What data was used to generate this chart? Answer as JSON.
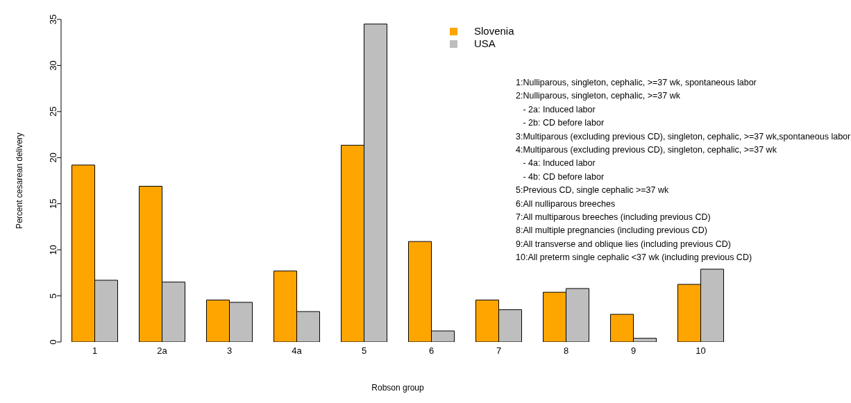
{
  "chart_data": {
    "type": "bar",
    "xlabel": "Robson group",
    "ylabel": "Percent cesarean delivery",
    "categories": [
      "1",
      "2a",
      "3",
      "4a",
      "5",
      "6",
      "7",
      "8",
      "9",
      "10"
    ],
    "series": [
      {
        "name": "Slovenia",
        "color": "#ffa500",
        "values": [
          19.2,
          16.9,
          4.55,
          7.7,
          21.35,
          10.9,
          4.55,
          5.4,
          3.0,
          6.25
        ]
      },
      {
        "name": "USA",
        "color": "#bebebe",
        "values": [
          6.7,
          6.5,
          4.3,
          3.3,
          34.5,
          1.2,
          3.5,
          5.8,
          0.4,
          7.9
        ]
      }
    ],
    "ylim": [
      0,
      35
    ],
    "yticks": [
      0,
      5,
      10,
      15,
      20,
      25,
      30,
      35
    ],
    "grid": false,
    "legend": "top right",
    "annotations": [
      "1:Nulliparous, singleton, cephalic, >=37 wk, spontaneous labor",
      "2:Nulliparous, singleton, cephalic, >=37 wk",
      "   - 2a: Induced labor",
      "   - 2b: CD before labor",
      "3:Multiparous (excluding previous CD), singleton, cephalic, >=37 wk,spontaneous labor",
      "4:Multiparous (excluding previous CD), singleton, cephalic, >=37 wk",
      "   - 4a: Induced labor",
      "   - 4b: CD before labor",
      "5:Previous CD, single cephalic >=37 wk",
      "6:All nulliparous breeches",
      "7:All multiparous breeches (including previous CD)",
      "8:All multiple pregnancies (including previous CD)",
      "9:All transverse and oblique lies (including previous CD)",
      "10:All preterm single cephalic <37 wk (including previous CD)"
    ]
  }
}
